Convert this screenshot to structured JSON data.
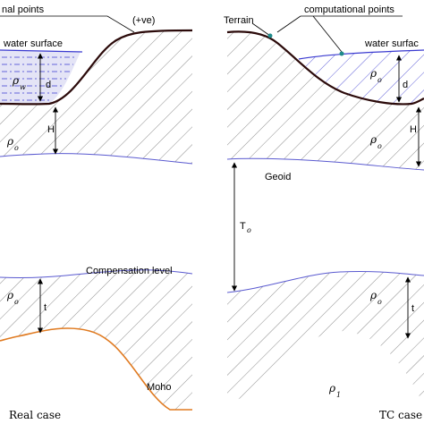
{
  "left_panel": {
    "header_label": "nal points",
    "top_label": "(+ve)",
    "water_surface_label": "water surface",
    "rho_w_symbol": "ρ",
    "rho_w_sub": "w",
    "d_label": "d",
    "h_label": "H",
    "rho_o_symbol": "ρ",
    "rho_o_sub": "o",
    "compensation_label": "Compensation level",
    "rho_o2_symbol": "ρ",
    "rho_o2_sub": "o",
    "t_label": "t",
    "moho_label": "Moho",
    "caption": "Real case"
  },
  "right_panel": {
    "terrain_label": "Terrain",
    "computational_label": "computational points",
    "water_surface_label": "water surfac",
    "rho_o_symbol": "ρ",
    "rho_o_sub": "o",
    "d_label": "d",
    "h_label": "H",
    "rho_o2_symbol": "ρ",
    "rho_o2_sub": "o",
    "geoid_label": "Geoid",
    "to_label": "T",
    "to_sub": "o",
    "rho_o3_symbol": "ρ",
    "rho_o3_sub": "o",
    "t_label": "t",
    "rho_1_symbol": "ρ",
    "rho_1_sub": "1",
    "caption": "TC case"
  },
  "colors": {
    "terrain": "#2b0a0a",
    "geoid": "#5a5ad0",
    "moho": "#e07a20",
    "water": "#3a3ad0",
    "marker": "#1f8a8a",
    "hatch": "#666666"
  }
}
